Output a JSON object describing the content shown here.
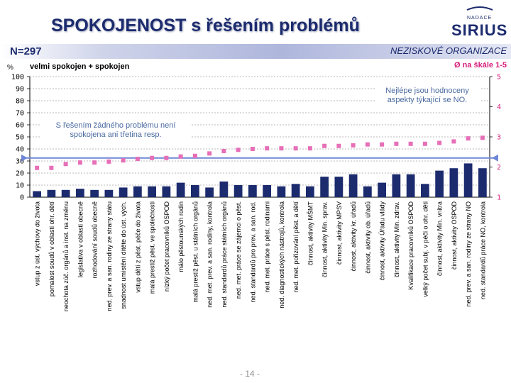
{
  "page": {
    "title": "SPOKOJENOST s řešením problémů",
    "n_label": "N=297",
    "group": "NEZISKOVÉ ORGANIZACE",
    "percent_label": "%",
    "footer": "- 14 -",
    "logo_top": "NADACE",
    "logo_main": "SIRIUS"
  },
  "notes": {
    "best": "Nejlépe jsou hodnoceny aspekty týkající se NO.",
    "worst": "S řešením žádného problému není spokojena ani třetina resp."
  },
  "chart_data": {
    "type": "bar",
    "title": "SPOKOJENOST s řešením problémů",
    "ylim": [
      0,
      100
    ],
    "y_ticks": [
      "0",
      "10",
      "20",
      "30",
      "40",
      "50",
      "60",
      "70",
      "80",
      "90",
      "100"
    ],
    "y2lim": [
      1,
      5
    ],
    "y2_ticks": [
      "1",
      "2",
      "3",
      "4",
      "5"
    ],
    "grid": true,
    "reference_line_y2": 2.3,
    "colors": {
      "bars": "#1c2b6e",
      "marker": "#e66fb8",
      "reference": "#6f86d6"
    },
    "categories": [
      "vstup z úst. výchovy do života",
      "pomalost soudů v oblasti ohr. dětí",
      "neochota zúč. orgánů a inst. na změnu",
      "legislativa v oblasti obecně",
      "rozhodování soudů obecně",
      "ned. prev. a san. rodiny ze strany státu",
      "snadnost umístění dítěte do úst. vých.",
      "vstup dětí z pěst. péče do života",
      "malá prestiž pěst. ve společnosti",
      "nízký počet pracovníků OSPOD",
      "málo pěstounských rodin",
      "malá prestiž pěst. u státních orgánů",
      "ned. met. prev. a san. rodiny, kontrola",
      "ned. standardů práce státních orgánů",
      "ned. met. práce se zájemci o pěst.",
      "ned. standardů pro prev. a san. rod.",
      "ned. met. práce s pěst. rodinami",
      "ned. diagnostických nástrojů, kontrola",
      "ned. met. pořizování pěst. a dětí",
      "činnost, aktivity MŠMT",
      "činnost, aktivity Min. sprav.",
      "činnost, aktivity MPSV",
      "činnost, aktivity kr. úřadů",
      "činnost, aktivity ob. úřadů",
      "činnost, aktivity Úřadu vlády",
      "činnost, aktivity Min. zdrav.",
      "Kvalifikace pracovníků OSPOD",
      "velký počet subj. v péči o ohr. děti",
      "činnost, aktivity Min. vnitra",
      "činnost, aktivity OSPOD",
      "ned. prev. a san. rodiny ze strany NO",
      "ned. standardů práce NO, kontrola"
    ],
    "series": [
      {
        "name": "velmi spokojen + spokojen",
        "axis": "left",
        "values": [
          5,
          6,
          6,
          7,
          6,
          6,
          8,
          9,
          9,
          9,
          12,
          10,
          8,
          13,
          10,
          10,
          10,
          9,
          11,
          9,
          17,
          17,
          19,
          9,
          12,
          19,
          19,
          11,
          22,
          24,
          28,
          24
        ]
      },
      {
        "name": "Ø na škále 1-5",
        "axis": "right",
        "values": [
          1.97,
          1.97,
          2.1,
          2.15,
          2.15,
          2.18,
          2.22,
          2.27,
          2.3,
          2.3,
          2.35,
          2.37,
          2.45,
          2.53,
          2.57,
          2.6,
          2.62,
          2.62,
          2.62,
          2.62,
          2.7,
          2.7,
          2.72,
          2.75,
          2.75,
          2.77,
          2.77,
          2.77,
          2.8,
          2.85,
          2.95,
          2.97
        ]
      }
    ]
  }
}
